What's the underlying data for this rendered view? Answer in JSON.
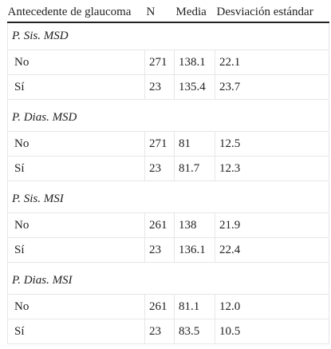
{
  "table": {
    "headers": [
      "Antecedente de glaucoma",
      "N",
      "Media",
      "Desviación estándar"
    ],
    "groups": [
      {
        "title": "P. Sis. MSD",
        "rows": [
          {
            "label": "No",
            "n": "271",
            "media": "138.1",
            "sd": "22.1"
          },
          {
            "label": "Sí",
            "n": "23",
            "media": "135.4",
            "sd": "23.7"
          }
        ]
      },
      {
        "title": "P. Dias. MSD",
        "rows": [
          {
            "label": "No",
            "n": "271",
            "media": "81",
            "sd": "12.5"
          },
          {
            "label": "Sí",
            "n": "23",
            "media": "81.7",
            "sd": "12.3"
          }
        ]
      },
      {
        "title": "P. Sis. MSI",
        "rows": [
          {
            "label": "No",
            "n": "261",
            "media": "138",
            "sd": "21.9"
          },
          {
            "label": "Sí",
            "n": "23",
            "media": "136.1",
            "sd": "22.4"
          }
        ]
      },
      {
        "title": "P. Dias. MSI",
        "rows": [
          {
            "label": "No",
            "n": "261",
            "media": "81.1",
            "sd": "12.0"
          },
          {
            "label": "Sí",
            "n": "23",
            "media": "83.5",
            "sd": "10.5"
          }
        ]
      }
    ]
  }
}
